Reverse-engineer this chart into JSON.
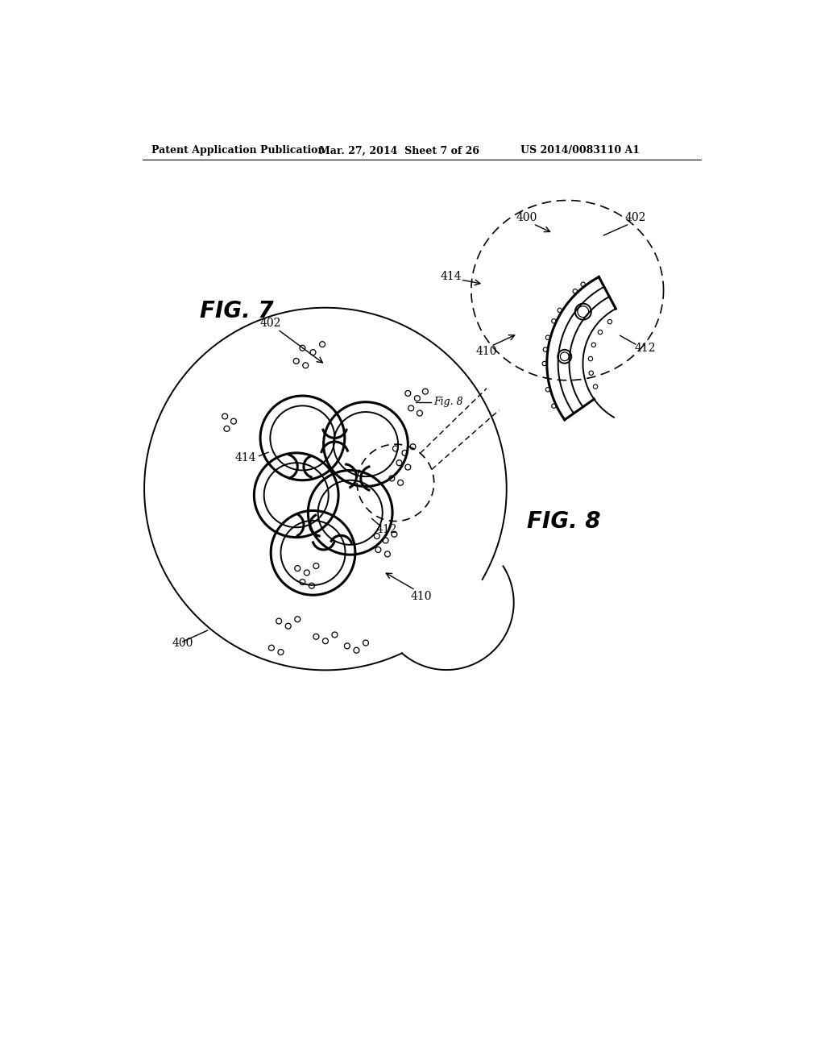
{
  "header_left": "Patent Application Publication",
  "header_mid": "Mar. 27, 2014  Sheet 7 of 26",
  "header_right": "US 2014/0083110 A1",
  "fig7_label": "FIG. 7",
  "fig8_label": "FIG. 8",
  "bg_color": "#ffffff",
  "line_color": "#000000"
}
